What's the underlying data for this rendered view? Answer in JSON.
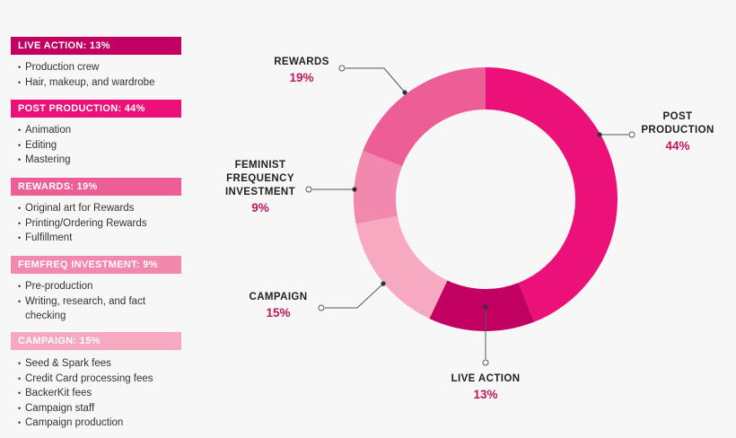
{
  "legend": {
    "categories": [
      {
        "title": "LIVE ACTION: 13%",
        "items": [
          "Production crew",
          "Hair, makeup, and wardrobe"
        ]
      },
      {
        "title": "POST PRODUCTION: 44%",
        "items": [
          "Animation",
          "Editing",
          "Mastering"
        ]
      },
      {
        "title": "REWARDS: 19%",
        "items": [
          "Original art for Rewards",
          "Printing/Ordering Rewards",
          "Fulfillment"
        ]
      },
      {
        "title": "FEMFREQ INVESTMENT: 9%",
        "items": [
          "Pre-production",
          "Writing, research, and fact checking"
        ]
      },
      {
        "title": "CAMPAIGN: 15%",
        "items": [
          "Seed & Spark fees",
          "Credit Card processing fees",
          "BackerKit fees",
          "Campaign staff",
          "Campaign production"
        ]
      }
    ]
  },
  "chart_data": {
    "type": "pie",
    "variant": "donut",
    "title": "",
    "start": "top, clockwise",
    "slices": [
      {
        "name_lines": [
          "POST",
          "PRODUCTION"
        ],
        "pct_label": "44%",
        "value": 44,
        "color": "#ec1079"
      },
      {
        "name_lines": [
          "LIVE ACTION"
        ],
        "pct_label": "13%",
        "value": 13,
        "color": "#c10062"
      },
      {
        "name_lines": [
          "CAMPAIGN"
        ],
        "pct_label": "15%",
        "value": 15,
        "color": "#f6a9c0"
      },
      {
        "name_lines": [
          "FEMINIST",
          "FREQUENCY",
          "INVESTMENT"
        ],
        "pct_label": "9%",
        "value": 9,
        "color": "#f288ad"
      },
      {
        "name_lines": [
          "REWARDS"
        ],
        "pct_label": "19%",
        "value": 19,
        "color": "#ee5e96"
      }
    ],
    "legend_colors": [
      "#c10062",
      "#ec1079",
      "#ee5e96",
      "#f288ad",
      "#f6a9c0"
    ]
  }
}
